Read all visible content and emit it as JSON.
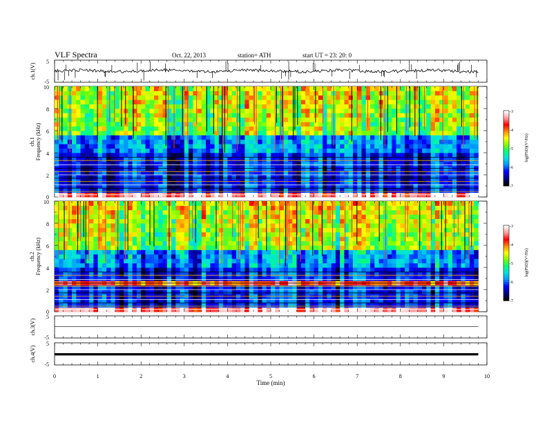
{
  "header": {
    "title": "VLF  Spectra",
    "date": "Oct. 22, 2013",
    "station": "station= ATH",
    "start_ut": "start  UT  =    23: 20: 0"
  },
  "chart_data": [
    {
      "type": "line",
      "panel": "ch1-waveform",
      "ylabel": "ch.1(V)",
      "ylim": [
        -5,
        5
      ],
      "y_ticks": [
        "5",
        "-5"
      ],
      "x_range": [
        0,
        10
      ],
      "series": [
        {
          "values_note": "noisy voltage trace around 0 V with sharp spikes",
          "baseline": 0.1,
          "end_time": 9.8
        }
      ]
    },
    {
      "type": "heatmap",
      "panel": "ch1-spectrogram",
      "channel_label": "ch.1",
      "ylabel": "Frequency  (kHz)",
      "ylim": [
        0,
        10
      ],
      "y_ticks": [
        "0",
        "2",
        "4",
        "6",
        "8",
        "10"
      ],
      "x_range": [
        0,
        9.8
      ],
      "colorbar": {
        "label": "log(PSD)(V²/Hz)",
        "range": [
          -7,
          -3
        ],
        "ticks": [
          "-3",
          "-4",
          "-5",
          "-6",
          "-7"
        ],
        "colors": [
          "#000000",
          "#00008b",
          "#0000ff",
          "#0096ff",
          "#00e0e0",
          "#00ff7f",
          "#7fff00",
          "#ffff00",
          "#ff8c00",
          "#ff0000",
          "#ff9a9a",
          "#ffffff"
        ]
      }
    },
    {
      "type": "heatmap",
      "panel": "ch2-spectrogram",
      "channel_label": "ch.2",
      "ylabel": "Frequency  (kHz)",
      "ylim": [
        0,
        10
      ],
      "y_ticks": [
        "0",
        "2",
        "4",
        "6",
        "8",
        "10"
      ],
      "x_range": [
        0,
        9.8
      ],
      "colorbar": {
        "label": "log(PSD)(V²/Hz)",
        "range": [
          -7,
          -3
        ],
        "ticks": [
          "-3",
          "-4",
          "-5",
          "-6",
          "-7"
        ]
      }
    },
    {
      "type": "line",
      "panel": "ch3-waveform",
      "ylabel": "ch.3(V)",
      "ylim": [
        -5,
        5
      ],
      "y_ticks": [
        "5",
        "-5"
      ],
      "x_range": [
        0,
        10
      ],
      "series": [
        {
          "values_note": "flat trace",
          "baseline": 0.2,
          "end_time": 9.8
        }
      ]
    },
    {
      "type": "line",
      "panel": "ch4-waveform",
      "ylabel": "ch.4(V)",
      "ylim": [
        -5,
        5
      ],
      "y_ticks": [
        "5",
        "-5"
      ],
      "x_range": [
        0,
        10
      ],
      "xlabel": "Time  (min)",
      "x_ticks": [
        "0",
        "1",
        "2",
        "3",
        "4",
        "5",
        "6",
        "7",
        "8",
        "9",
        "10"
      ],
      "series": [
        {
          "values_note": "thick flat band",
          "baseline": -0.2,
          "end_time": 9.8
        }
      ]
    }
  ]
}
